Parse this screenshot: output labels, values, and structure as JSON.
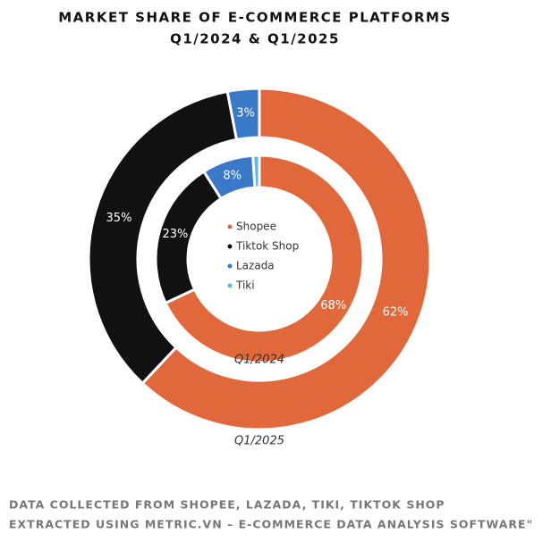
{
  "chart_data": {
    "type": "nested-donut",
    "title": "MARKET SHARE OF E-COMMERCE PLATFORMS",
    "subtitle": "Q1/2024 & Q1/2025",
    "categories": [
      "Shopee",
      "Tiktok Shop",
      "Lazada",
      "Tiki"
    ],
    "colors": [
      "#e0683a",
      "#111111",
      "#3a78c8",
      "#5bb8e8"
    ],
    "series": [
      {
        "name": "Q1/2024",
        "values": [
          68,
          23,
          8,
          1
        ],
        "value_labels": [
          "68%",
          "23%",
          "8%",
          null
        ]
      },
      {
        "name": "Q1/2025",
        "values": [
          62,
          35,
          3,
          0
        ],
        "value_labels": [
          "62%",
          "35%",
          "3%",
          null
        ]
      }
    ],
    "notes": [
      "DATA COLLECTED FROM SHOPEE, LAZADA, TIKI, TIKTOK SHOP",
      "EXTRACTED USING METRIC.VN – E-COMMERCE DATA ANALYSIS SOFTWARE\""
    ]
  }
}
